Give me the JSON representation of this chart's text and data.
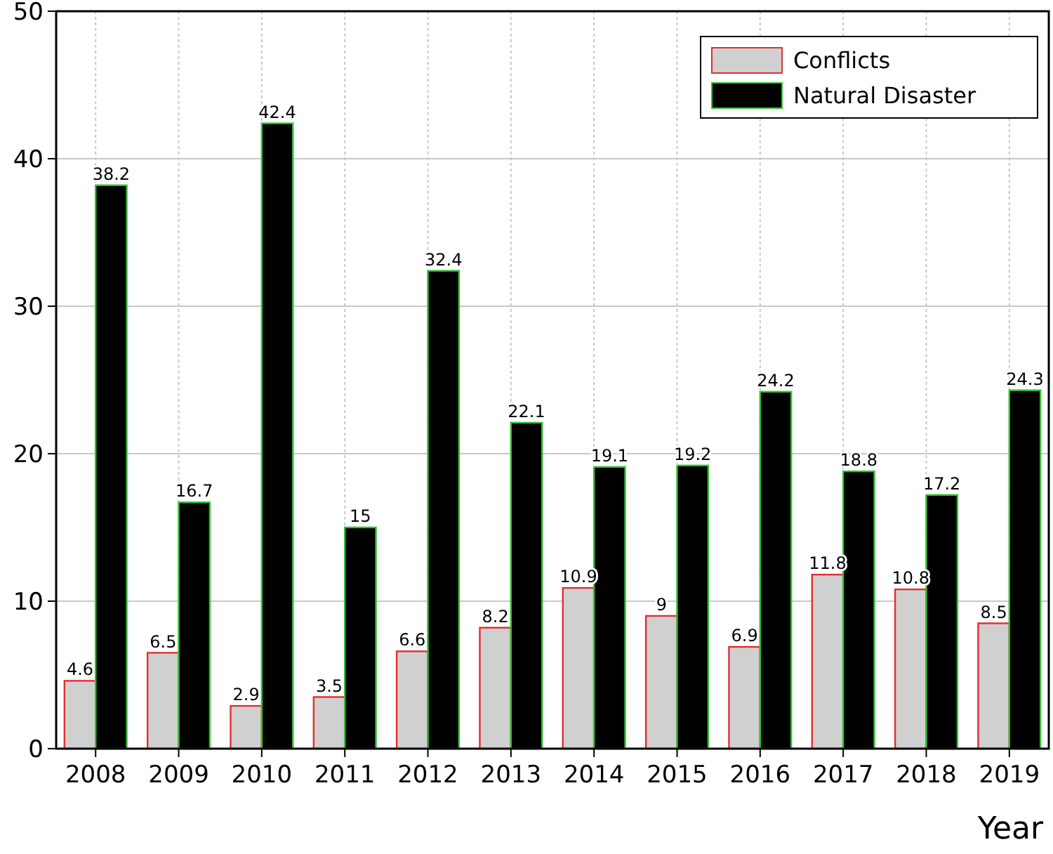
{
  "chart_data": {
    "type": "bar",
    "xlabel": "Year",
    "categories": [
      "2008",
      "2009",
      "2010",
      "2011",
      "2012",
      "2013",
      "2014",
      "2015",
      "2016",
      "2017",
      "2018",
      "2019"
    ],
    "series": [
      {
        "name": "Conflicts",
        "color": "#d0d0d0",
        "values": [
          4.6,
          6.5,
          2.9,
          3.5,
          6.6,
          8.2,
          10.9,
          9,
          6.9,
          11.8,
          10.8,
          8.5
        ]
      },
      {
        "name": "Natural Disaster",
        "color": "#000000",
        "values": [
          38.2,
          16.7,
          42.4,
          15,
          32.4,
          22.1,
          19.1,
          19.2,
          24.2,
          18.8,
          17.2,
          24.3
        ]
      }
    ],
    "ylim": [
      0,
      50
    ],
    "yticks": [
      0,
      10,
      20,
      30,
      40,
      50
    ],
    "grid": true,
    "legend": "top right",
    "data_labels": true
  }
}
